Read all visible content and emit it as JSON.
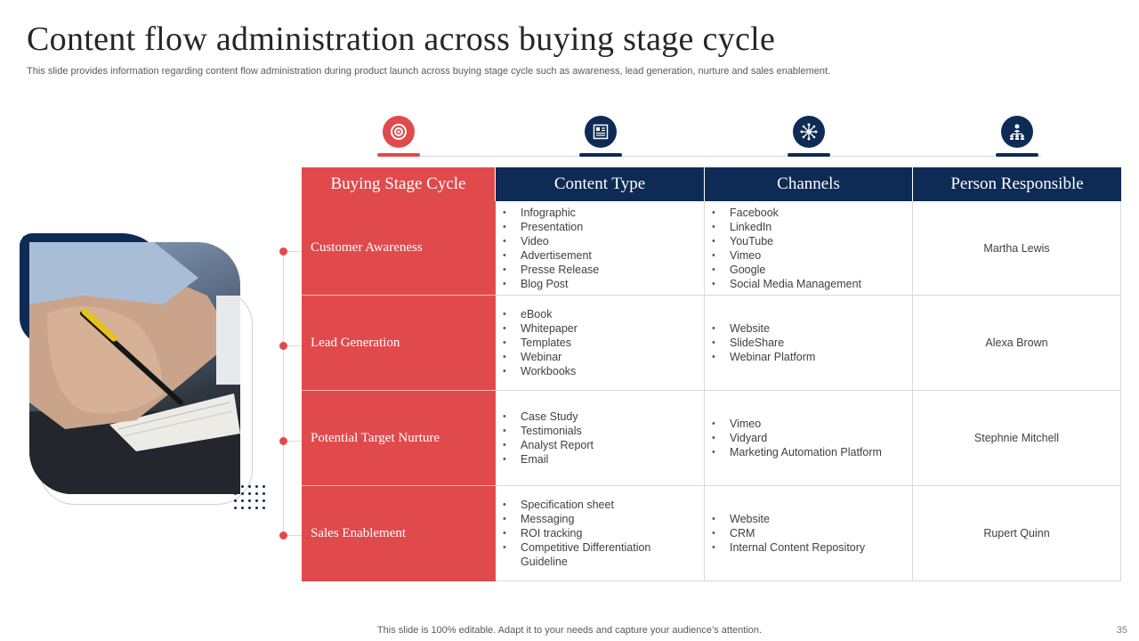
{
  "slide": {
    "title": "Content flow administration across buying stage cycle",
    "subtitle": "This slide provides information regarding content flow administration during product launch across buying stage cycle such as awareness, lead generation, nurture and sales enablement.",
    "footer": "This slide is 100% editable. Adapt it to your needs and capture your audience’s attention.",
    "page_number": "35"
  },
  "colors": {
    "accent_red": "#e04a4c",
    "navy": "#0d2b54"
  },
  "icons": [
    "target-icon",
    "content-icon",
    "network-icon",
    "org-chart-icon"
  ],
  "table": {
    "headers": [
      "Buying Stage Cycle",
      "Content Type",
      "Channels",
      "Person Responsible"
    ],
    "rows": [
      {
        "stage": "Customer Awareness",
        "content": [
          "Infographic",
          "Presentation",
          "Video",
          "Advertisement",
          "Presse Release",
          "Blog Post"
        ],
        "channels": [
          "Facebook",
          "LinkedIn",
          "YouTube",
          "Vimeo",
          "Google",
          "Social Media Management"
        ],
        "person": "Martha Lewis"
      },
      {
        "stage": "Lead Generation",
        "content": [
          "eBook",
          "Whitepaper",
          "Templates",
          "Webinar",
          "Workbooks"
        ],
        "channels": [
          "Website",
          "SlideShare",
          "Webinar Platform"
        ],
        "person": "Alexa Brown"
      },
      {
        "stage": "Potential Target Nurture",
        "content": [
          "Case Study",
          "Testimonials",
          "Analyst Report",
          "Email"
        ],
        "channels": [
          "Vimeo",
          "Vidyard",
          "Marketing Automation Platform"
        ],
        "person": "Stephnie Mitchell"
      },
      {
        "stage": "Sales Enablement",
        "content": [
          "Specification sheet",
          "Messaging",
          "ROI tracking",
          "Competitive  Differentiation Guideline"
        ],
        "channels": [
          "Website",
          "CRM",
          "Internal  Content Repository"
        ],
        "person": "Rupert Quinn"
      }
    ]
  }
}
